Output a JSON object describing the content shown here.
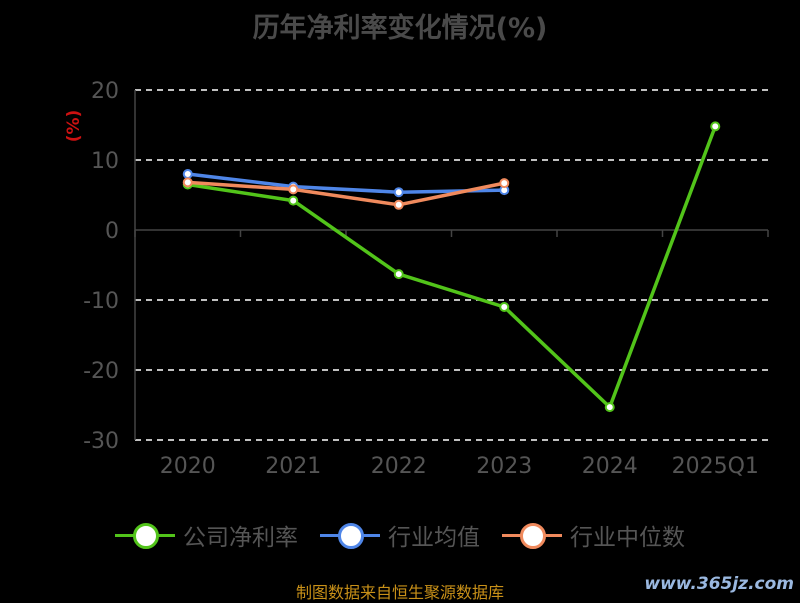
{
  "chart_data": {
    "type": "line",
    "title": "历年净利率变化情况(%)",
    "ylabel": "(%)",
    "categories": [
      "2020",
      "2021",
      "2022",
      "2023",
      "2024",
      "2025Q1"
    ],
    "ylim": [
      -30,
      20
    ],
    "yticks": [
      "20",
      "10",
      "0",
      "-10",
      "-20",
      "-30"
    ],
    "grid": true,
    "legend_position": "bottom",
    "series": [
      {
        "name": "公司净利率",
        "color": "#52c41a",
        "values": [
          6.5,
          4.2,
          -6.3,
          -11.0,
          -25.3,
          14.8
        ]
      },
      {
        "name": "行业均值",
        "color": "#4f86e8",
        "values": [
          8.0,
          6.2,
          5.4,
          5.7,
          null,
          null
        ]
      },
      {
        "name": "行业中位数",
        "color": "#f08a5d",
        "values": [
          6.8,
          5.8,
          3.6,
          6.7,
          null,
          null
        ]
      }
    ]
  },
  "footer": {
    "source": "制图数据来自恒生聚源数据库",
    "watermark": "www.365jz.com"
  }
}
